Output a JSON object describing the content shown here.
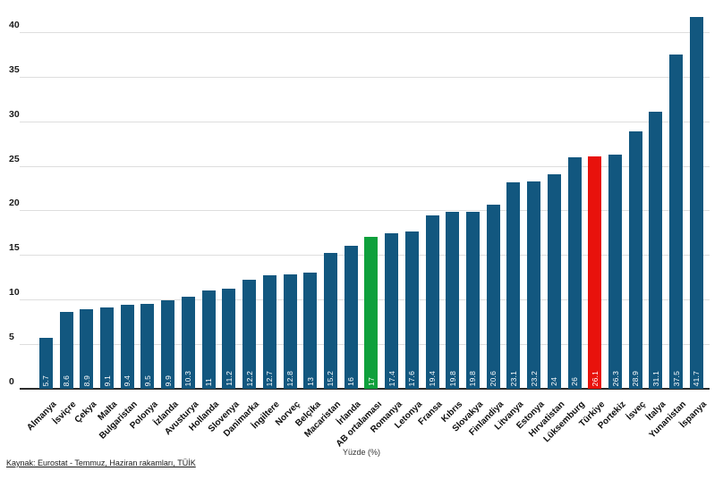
{
  "chart_data": {
    "type": "bar",
    "title": "",
    "xlabel": "Yüzde (%)",
    "ylabel": "",
    "ylim": [
      0,
      42
    ],
    "yticks": [
      0,
      5,
      10,
      15,
      20,
      25,
      30,
      35,
      40
    ],
    "grid": "horizontal",
    "legend": "none",
    "categories": [
      "Almanya",
      "İsviçre",
      "Çekya",
      "Malta",
      "Bulgaristan",
      "Polonya",
      "İzlanda",
      "Avusturya",
      "Hollanda",
      "Slovenya",
      "Danimarka",
      "İngiltere",
      "Norveç",
      "Belçika",
      "Macaristan",
      "İrlanda",
      "AB ortalaması",
      "Romanya",
      "Letonya",
      "Fransa",
      "Kıbrıs",
      "Slovakya",
      "Finlandiya",
      "Litvanya",
      "Estonya",
      "Hırvatistan",
      "Lüksemburg",
      "Türkiye",
      "Portekiz",
      "İsveç",
      "İtalya",
      "Yunanistan",
      "İspanya"
    ],
    "values": [
      5.7,
      8.6,
      8.9,
      9.1,
      9.4,
      9.5,
      9.9,
      10.3,
      11,
      11.2,
      12.2,
      12.7,
      12.8,
      13,
      15.2,
      16,
      17,
      17.4,
      17.6,
      19.4,
      19.8,
      19.8,
      20.6,
      23.1,
      23.2,
      24,
      26,
      26.1,
      26.3,
      28.9,
      31.1,
      37.5,
      41.7
    ],
    "colors": {
      "default_bar": "#12577f",
      "eu_average_bar": "#0ea03c",
      "turkey_bar": "#e8120c",
      "gridline": "#dedede",
      "axis_line": "#2b2b2b"
    },
    "highlights": [
      {
        "index": 16,
        "category": "AB ortalaması",
        "color_key": "eu_average_bar"
      },
      {
        "index": 27,
        "category": "Türkiye",
        "color_key": "turkey_bar"
      }
    ]
  },
  "footer": {
    "source": "Kaynak: Eurostat - Temmuz, Haziran rakamları, TÜİK"
  }
}
